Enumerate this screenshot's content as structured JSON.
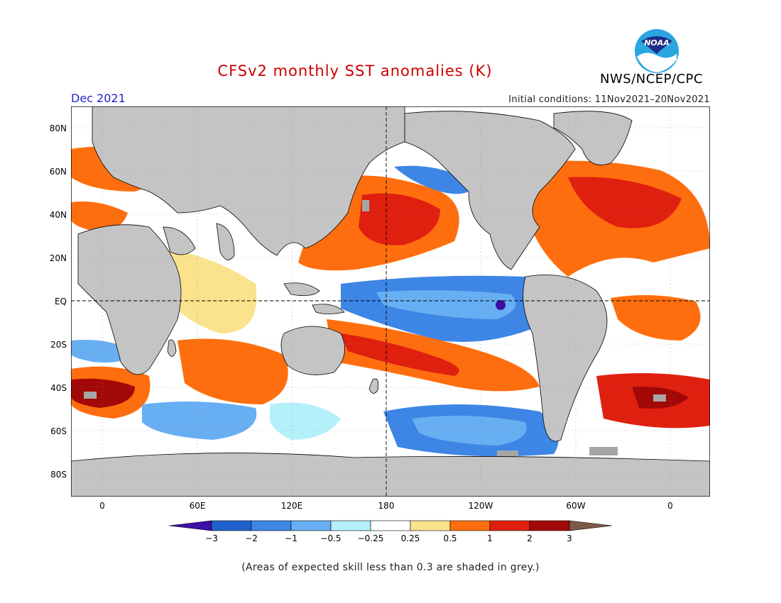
{
  "header": {
    "title": "CFSv2 monthly SST anomalies (K)",
    "valid_month": "Dec 2021",
    "initial_conditions": "Initial conditions: 11Nov2021–20Nov2021",
    "organization": "NWS/NCEP/CPC",
    "logo_text": "NOAA"
  },
  "map": {
    "lat_labels": [
      "80N",
      "60N",
      "40N",
      "20N",
      "EQ",
      "20S",
      "40S",
      "60S",
      "80S"
    ],
    "lon_labels": [
      "0",
      "60E",
      "120E",
      "180",
      "120W",
      "60W",
      "0"
    ],
    "land_color": "#c4c4c4",
    "ocean_color": "#ffffff"
  },
  "colorbar": {
    "ticks": [
      "−3",
      "−2",
      "−1",
      "−0.5",
      "−0.25",
      "0.25",
      "0.5",
      "1",
      "2",
      "3"
    ],
    "colors": [
      "#3d0fa6",
      "#1f61cc",
      "#3d86e6",
      "#68aef2",
      "#b4f0fa",
      "#ffffff",
      "#fae38c",
      "#ff6e0e",
      "#e0200f",
      "#a30808",
      "#7c5a4a"
    ]
  },
  "footnote": "(Areas of expected skill less than 0.3 are shaded in grey.)"
}
